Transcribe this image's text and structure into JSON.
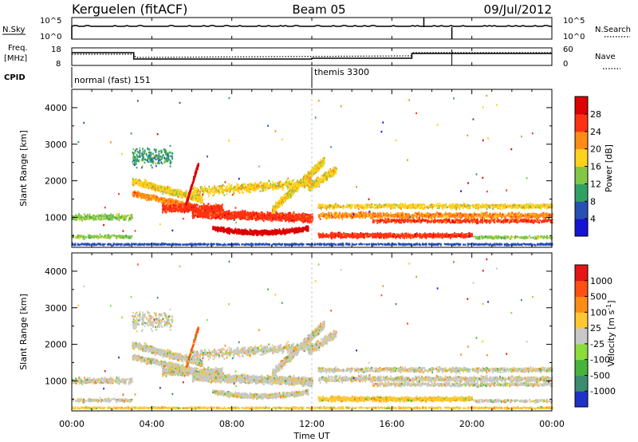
{
  "header": {
    "site": "Kerguelen (fitACF)",
    "beam": "Beam 05",
    "date": "09/Jul/2012"
  },
  "strip": {
    "nsky_label": "N.Sky",
    "nsearch_label": "N.Search",
    "count_ticks": [
      "10^5",
      "10^0"
    ],
    "freq_label_1": "Freq.",
    "freq_label_2": "[MHz]",
    "freq_ticks": [
      "18",
      "8"
    ],
    "nave_label": "Nave",
    "nave_ticks": [
      "60",
      "0"
    ],
    "cpid_label": "CPID",
    "cpid_modes": [
      {
        "name": "normal (fast) 151",
        "start_hour": 0
      },
      {
        "name": "themis 3300",
        "start_hour": 12.0
      }
    ]
  },
  "chart_data": [
    {
      "type": "heatmap",
      "name": "power",
      "ylabel": "Slant Range [km]",
      "ylim": [
        180,
        4500
      ],
      "xlim": [
        0,
        24
      ],
      "yticks": [
        1000,
        2000,
        3000,
        4000
      ],
      "colorbar": {
        "label": "Power [dB]",
        "ticks": [
          "4",
          "8",
          "12",
          "16",
          "20",
          "24",
          "28"
        ],
        "colors": [
          "#1414d2",
          "#2850b4",
          "#32a064",
          "#82c846",
          "#ffd21e",
          "#ff8c14",
          "#ff3214",
          "#dc0000"
        ]
      }
    },
    {
      "type": "heatmap",
      "name": "velocity",
      "ylabel": "Slant Range [km]",
      "ylim": [
        180,
        4500
      ],
      "xlim": [
        0,
        24
      ],
      "yticks": [
        1000,
        2000,
        3000,
        4000
      ],
      "colorbar": {
        "label": "Velocity [m s",
        "label_sup": "-1",
        "label_end": "]",
        "ticks": [
          "1000",
          "500",
          "100",
          "25",
          "-25",
          "-100",
          "-500",
          "-1000"
        ],
        "colors": [
          "#1e32c8",
          "#3c8c6e",
          "#46b43c",
          "#8cdc3c",
          "#c8c8c8",
          "#ffc832",
          "#ff8c14",
          "#ff5014",
          "#e61414"
        ]
      }
    }
  ],
  "xaxis": {
    "label": "Time UT",
    "ticks": [
      "00:00",
      "04:00",
      "08:00",
      "12:00",
      "16:00",
      "20:00",
      "00:00"
    ]
  }
}
